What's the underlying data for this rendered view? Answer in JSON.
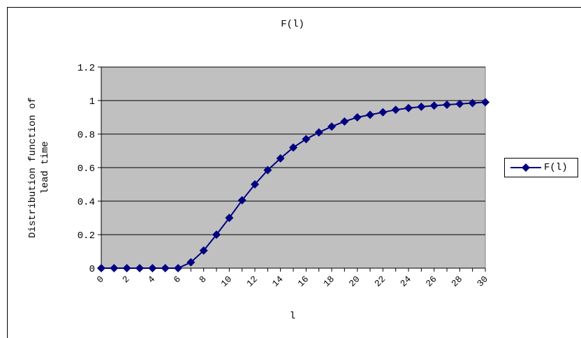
{
  "chart_data": {
    "type": "line",
    "title": "F(l)",
    "xlabel": "l",
    "ylabel": "Distribution function of lead time",
    "xlim": [
      0,
      30
    ],
    "ylim": [
      0,
      1.2
    ],
    "x_tick_labels": [
      "0",
      "2",
      "4",
      "6",
      "8",
      "10",
      "12",
      "14",
      "16",
      "18",
      "20",
      "22",
      "24",
      "26",
      "28",
      "30"
    ],
    "y_tick_labels": [
      "0",
      "0.2",
      "0.4",
      "0.6",
      "0.8",
      "1",
      "1.2"
    ],
    "grid": "horizontal",
    "legend": "right",
    "series": [
      {
        "name": "F(l)",
        "color": "#000080",
        "marker": "diamond",
        "x": [
          0,
          1,
          2,
          3,
          4,
          5,
          6,
          7,
          8,
          9,
          10,
          11,
          12,
          13,
          14,
          15,
          16,
          17,
          18,
          19,
          20,
          21,
          22,
          23,
          24,
          25,
          26,
          27,
          28,
          29,
          30
        ],
        "values": [
          0,
          0,
          0,
          0,
          0,
          0,
          0,
          0.035,
          0.105,
          0.2,
          0.3,
          0.405,
          0.5,
          0.585,
          0.655,
          0.72,
          0.77,
          0.81,
          0.845,
          0.875,
          0.9,
          0.915,
          0.93,
          0.945,
          0.955,
          0.963,
          0.97,
          0.975,
          0.98,
          0.985,
          0.99
        ]
      }
    ]
  }
}
